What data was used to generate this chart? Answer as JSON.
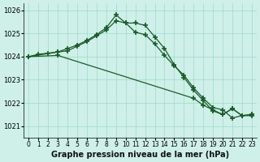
{
  "title": "Graphe pression niveau de la mer (hPa)",
  "background_color": "#cef0e8",
  "grid_color": "#a0d8cc",
  "line_color": "#1a5c2a",
  "marker": "+",
  "markersize": 4,
  "linewidth": 0.9,
  "xlim": [
    -0.5,
    23.5
  ],
  "ylim": [
    1020.5,
    1026.3
  ],
  "yticks": [
    1021,
    1022,
    1023,
    1024,
    1025,
    1026
  ],
  "xticks": [
    0,
    1,
    2,
    3,
    4,
    5,
    6,
    7,
    8,
    9,
    10,
    11,
    12,
    13,
    14,
    15,
    16,
    17,
    18,
    19,
    20,
    21,
    22,
    23
  ],
  "series": [
    {
      "x": [
        0,
        1,
        2,
        3,
        4,
        5,
        6,
        7,
        8,
        9,
        10,
        11,
        12,
        13,
        14,
        15,
        16,
        17,
        18,
        19,
        20,
        21,
        22,
        23
      ],
      "y": [
        1024.0,
        1024.1,
        1024.15,
        1024.2,
        1024.35,
        1024.5,
        1024.7,
        1024.95,
        1025.25,
        1025.8,
        1025.45,
        1025.05,
        1024.95,
        1024.55,
        1024.05,
        1023.6,
        1023.2,
        1022.65,
        1022.2,
        1021.8,
        1021.7,
        1021.35,
        1021.45,
        1021.45
      ]
    },
    {
      "x": [
        0,
        3,
        4,
        5,
        6,
        7,
        8,
        9,
        10,
        11,
        12,
        13,
        14,
        15,
        16,
        17,
        18,
        19,
        20,
        21,
        22,
        23
      ],
      "y": [
        1024.0,
        1024.2,
        1024.25,
        1024.45,
        1024.65,
        1024.9,
        1025.15,
        1025.55,
        1025.45,
        1025.45,
        1025.35,
        1024.85,
        1024.35,
        1023.65,
        1023.1,
        1022.55,
        1022.1,
        1021.65,
        1021.5,
        1021.75,
        1021.45,
        1021.5
      ]
    },
    {
      "x": [
        0,
        3,
        17,
        18,
        19,
        20,
        21,
        22,
        23
      ],
      "y": [
        1024.0,
        1024.05,
        1022.2,
        1021.9,
        1021.7,
        1021.5,
        1021.75,
        1021.45,
        1021.5
      ]
    }
  ]
}
